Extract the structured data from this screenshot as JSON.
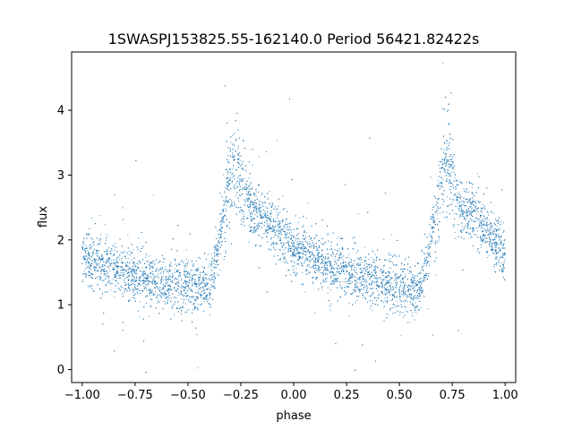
{
  "chart_data": {
    "type": "scatter",
    "title": "1SWASPJ153825.55-162140.0 Period 56421.82422s",
    "xlabel": "phase",
    "ylabel": "flux",
    "xlim": [
      -1.05,
      1.05
    ],
    "ylim": [
      -0.2,
      4.9
    ],
    "x_ticks": [
      -1.0,
      -0.75,
      -0.5,
      -0.25,
      0.0,
      0.25,
      0.5,
      0.75,
      1.0
    ],
    "x_tick_labels": [
      "−1.00",
      "−0.75",
      "−0.50",
      "−0.25",
      "0.00",
      "0.25",
      "0.50",
      "0.75",
      "1.00"
    ],
    "y_ticks": [
      0,
      1,
      2,
      3,
      4
    ],
    "y_tick_labels": [
      "0",
      "1",
      "2",
      "3",
      "4"
    ],
    "grid": false,
    "marker_color": "#1f77b4",
    "series": [
      {
        "x": [
          -1.0,
          -0.9,
          -0.8,
          -0.7,
          -0.6,
          -0.5,
          -0.45,
          -0.4,
          -0.35,
          -0.3,
          -0.28,
          -0.25,
          -0.2,
          -0.1,
          0.0,
          0.1,
          0.2,
          0.3,
          0.4,
          0.5,
          0.55,
          0.6,
          0.65,
          0.7,
          0.72,
          0.75,
          0.8,
          0.9,
          1.0
        ],
        "y": [
          1.75,
          1.6,
          1.5,
          1.4,
          1.35,
          1.3,
          1.25,
          1.25,
          2.0,
          2.95,
          3.2,
          2.9,
          2.5,
          2.2,
          1.9,
          1.7,
          1.55,
          1.45,
          1.35,
          1.3,
          1.25,
          1.25,
          2.0,
          2.95,
          3.2,
          2.9,
          2.5,
          2.2,
          1.75
        ]
      }
    ]
  }
}
